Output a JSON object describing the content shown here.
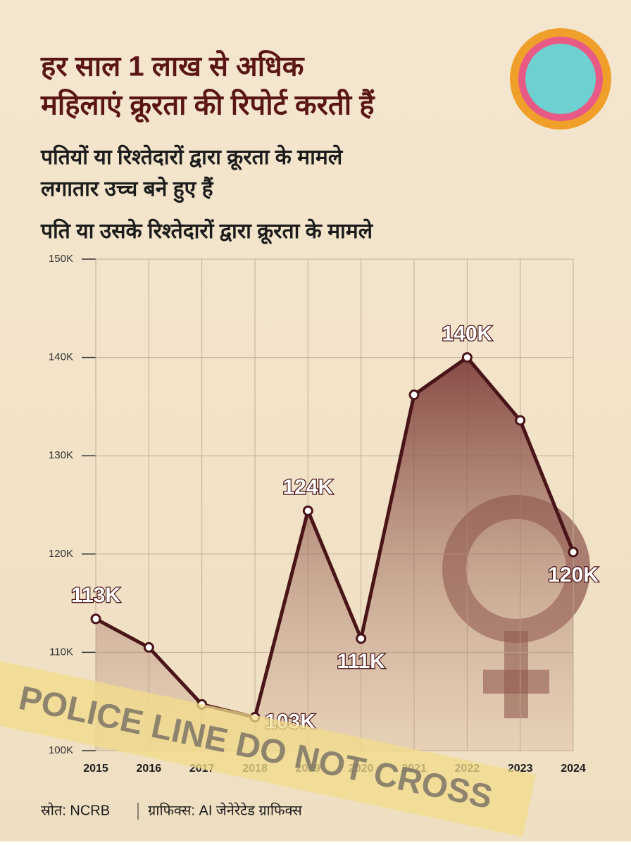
{
  "chart_data": {
    "type": "line",
    "title": "हर साल 1 लाख से अधिक",
    "title_line2": "महिलाएं क्रूरता की रिपोर्ट करती हैं",
    "subtitle": "पतियों या रिश्तेदारों द्वारा क्रूरता के मामले",
    "subtitle_line2": "लगातार उच्च बने हुए हैं",
    "chart_title": "पति या उसके रिश्तेदारों द्वारा क्रूरता के मामले",
    "categories": [
      "2015",
      "2016",
      "2017",
      "2018",
      "2019",
      "2020",
      "2021",
      "2022",
      "2023",
      "2024"
    ],
    "values": [
      113400,
      110500,
      104700,
      103400,
      124400,
      111400,
      136200,
      140000,
      133600,
      120200
    ],
    "value_labels": [
      "113K",
      null,
      null,
      "103K",
      "124K",
      "111K",
      null,
      "140K",
      null,
      "120K"
    ],
    "color": "#4a1518",
    "ylim": [
      100000,
      150000
    ],
    "yticks": [
      {
        "value": 100000,
        "label": "100K"
      },
      {
        "value": 110000,
        "label": "110K"
      },
      {
        "value": 120000,
        "label": "120K"
      },
      {
        "value": 130000,
        "label": "130K"
      },
      {
        "value": 140000,
        "label": "140K"
      },
      {
        "value": 150000,
        "label": "150K"
      }
    ],
    "grid": true,
    "source": "स्रोत: NCRB",
    "credit": "ग्राफिक्स: AI जेनेरेटेड ग्राफिक्स",
    "tape_text": "POLICE LINE DO NOT CROSS"
  }
}
